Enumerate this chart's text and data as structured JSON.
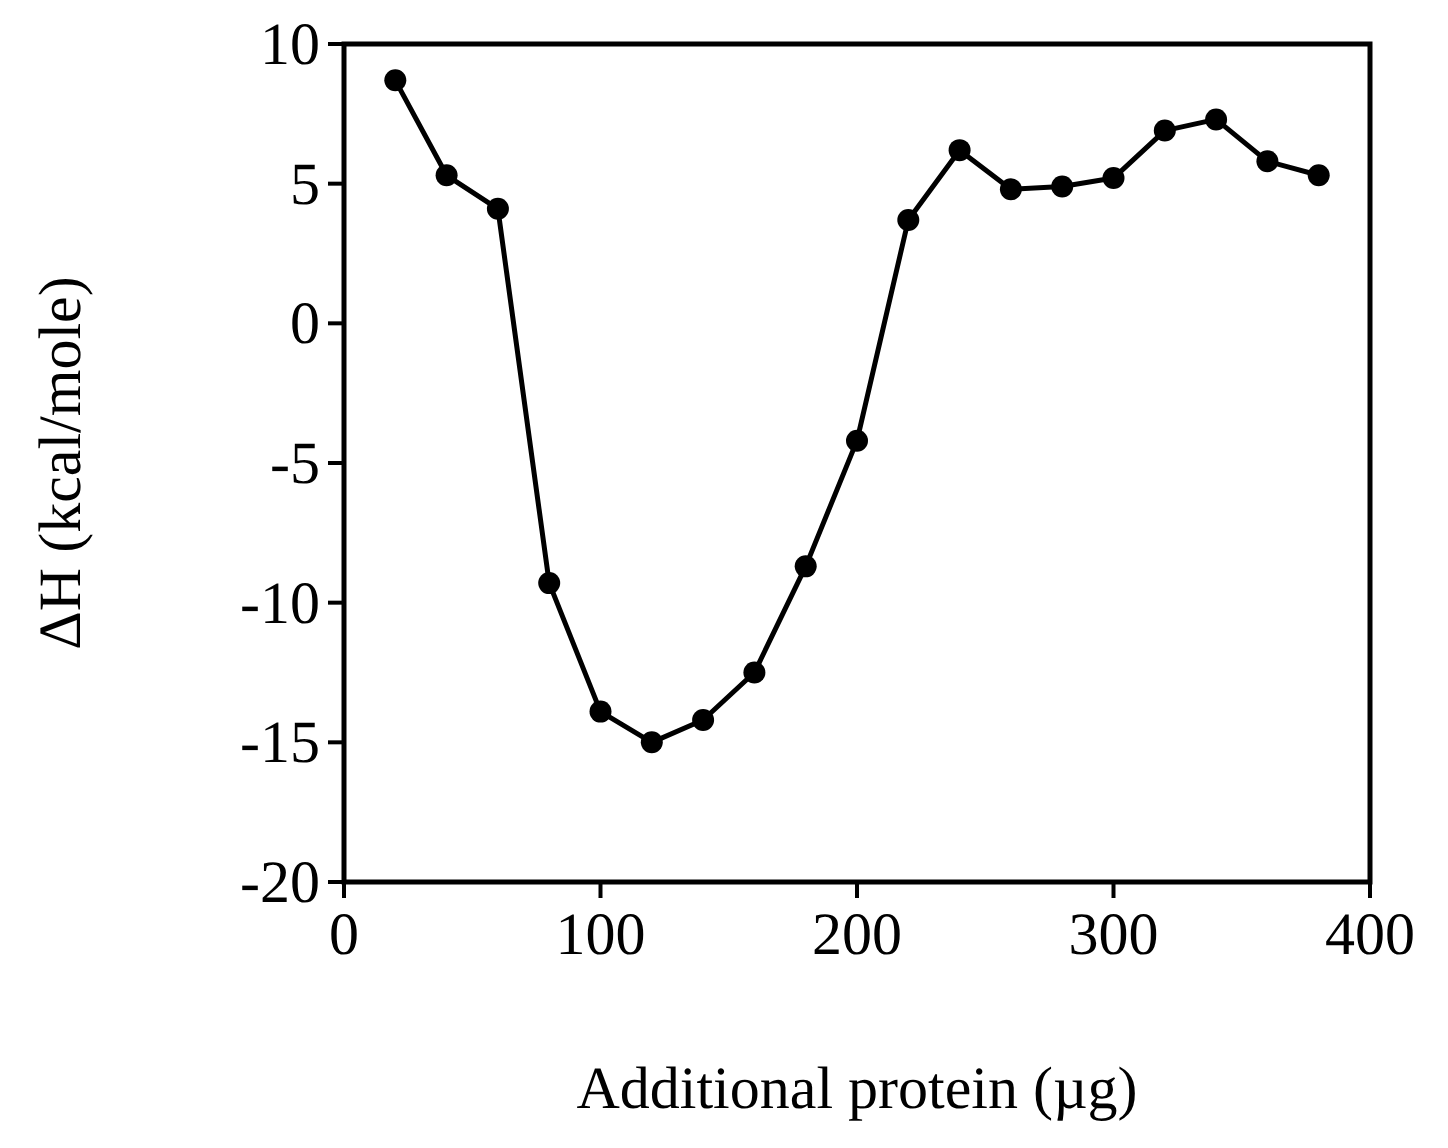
{
  "chart_data": {
    "type": "line",
    "xlabel": "Additional protein (µg)",
    "ylabel": "ΔH (kcal/mole)",
    "x": [
      20,
      40,
      60,
      80,
      100,
      120,
      140,
      160,
      180,
      200,
      220,
      240,
      260,
      280,
      300,
      320,
      340,
      360,
      380
    ],
    "series": [
      {
        "color": "#000000",
        "values": [
          8.7,
          5.3,
          4.1,
          -9.3,
          -13.9,
          -15,
          -14.2,
          -12.5,
          -8.7,
          -4.2,
          3.7,
          6.2,
          4.8,
          4.9,
          5.2,
          6.9,
          7.3,
          5.8,
          5.3
        ]
      }
    ],
    "xlim": [
      0,
      400
    ],
    "xticks": [
      0,
      100,
      200,
      300,
      400
    ],
    "ylim": [
      -20,
      10
    ],
    "yticks": [
      -20,
      -15,
      -10,
      -5,
      0,
      5,
      10
    ],
    "grid": false,
    "marker": "circle",
    "line_style": "solid"
  }
}
